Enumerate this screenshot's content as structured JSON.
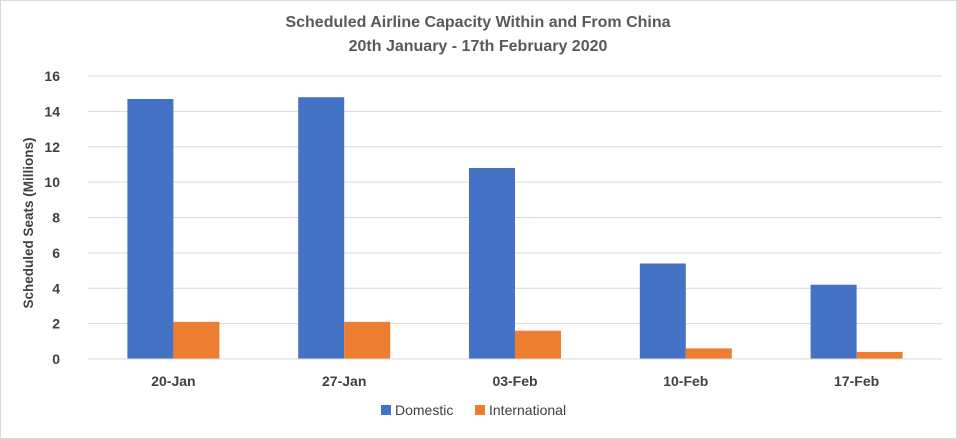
{
  "chart_data": {
    "type": "bar",
    "title": "Scheduled Airline Capacity Within and From China",
    "subtitle": "20th January - 17th February 2020",
    "xlabel": "",
    "ylabel": "Scheduled Seats (Millions)",
    "ylim": [
      0,
      16
    ],
    "yticks": [
      "0",
      "2",
      "4",
      "6",
      "8",
      "10",
      "12",
      "14",
      "16"
    ],
    "categories": [
      "20-Jan",
      "27-Jan",
      "03-Feb",
      "10-Feb",
      "17-Feb"
    ],
    "series": [
      {
        "name": "Domestic",
        "color": "#4472c4",
        "values": [
          14.7,
          14.8,
          10.8,
          5.4,
          4.2
        ]
      },
      {
        "name": "International",
        "color": "#ed7d31",
        "values": [
          2.1,
          2.1,
          1.6,
          0.6,
          0.4
        ]
      }
    ],
    "grid": true,
    "legend_position": "bottom"
  }
}
